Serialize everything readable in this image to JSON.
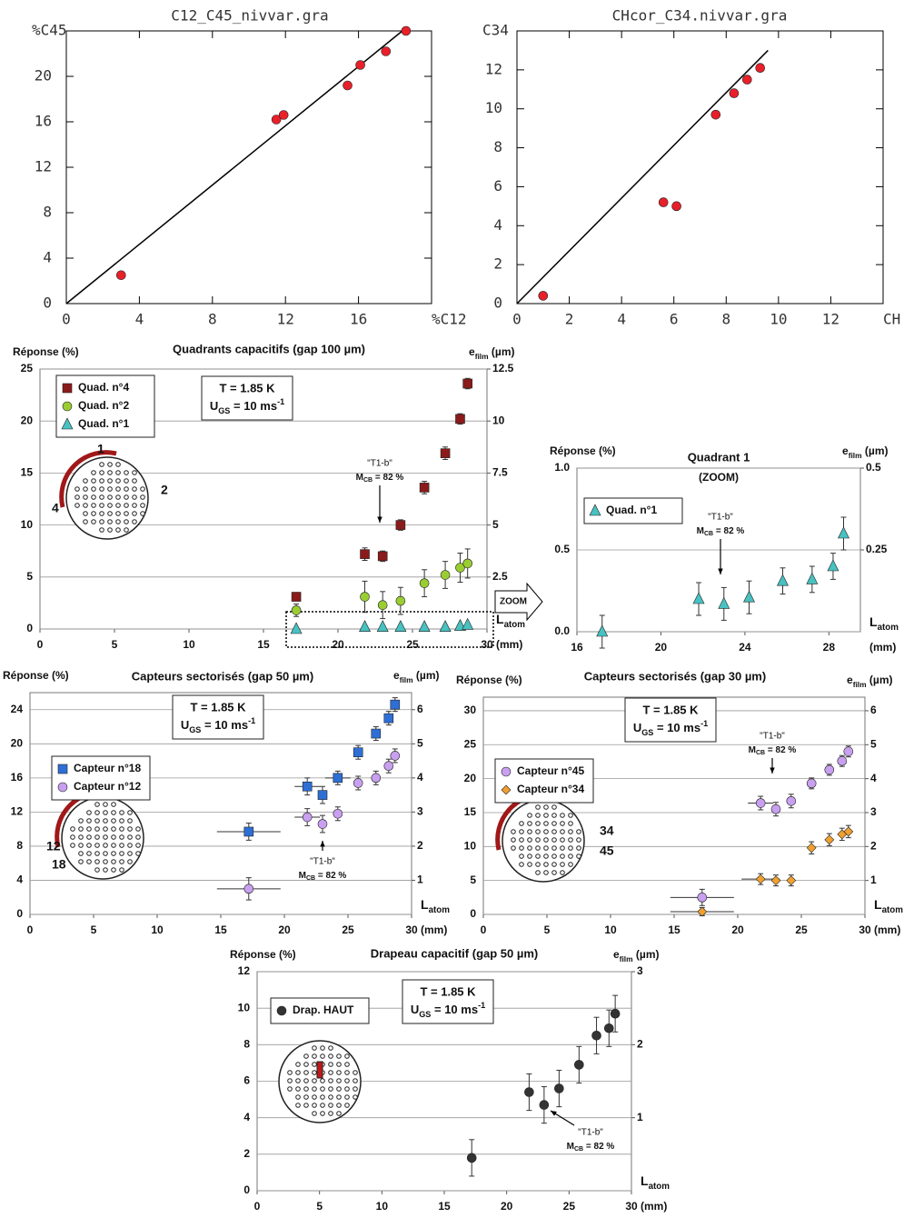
{
  "chart_data": [
    {
      "type": "scatter",
      "title": "C12_C45_nivvar.gra",
      "x_label": "%C12",
      "y_label": "%C45",
      "xlim": [
        0,
        20
      ],
      "ylim": [
        0,
        24
      ],
      "xticks": [
        0,
        4,
        8,
        12,
        16
      ],
      "yticks": [
        0,
        4,
        8,
        12,
        16,
        20
      ],
      "grid": false,
      "fit": {
        "x": [
          0,
          18.4
        ],
        "y": [
          0,
          24
        ]
      },
      "series": [
        {
          "color": "#e8202a",
          "marker": "circle",
          "x": [
            3,
            11.5,
            11.9,
            15.4,
            16.1,
            17.5,
            18.6
          ],
          "values": [
            2.5,
            16.2,
            16.6,
            19.2,
            21,
            22.2,
            24
          ]
        }
      ]
    },
    {
      "type": "scatter",
      "title": "CHcor_C34.nivvar.gra",
      "x_label": "CH",
      "y_label": "C34",
      "xlim": [
        0,
        14
      ],
      "ylim": [
        0,
        14
      ],
      "xticks": [
        0,
        2,
        4,
        6,
        8,
        10,
        12
      ],
      "yticks": [
        0,
        2,
        4,
        6,
        8,
        10,
        12
      ],
      "grid": false,
      "fit": {
        "x": [
          0,
          9.6
        ],
        "y": [
          0,
          13
        ]
      },
      "series": [
        {
          "color": "#e8202a",
          "marker": "circle",
          "x": [
            1,
            5.6,
            6.1,
            7.6,
            8.3,
            8.8,
            9.3
          ],
          "values": [
            0.4,
            5.2,
            5,
            9.7,
            10.8,
            11.5,
            12.1
          ]
        }
      ]
    },
    {
      "type": "scatter",
      "title": "Quadrants capacitifs (gap 100 µm)",
      "y_label": "Réponse (%)",
      "y2_label": "e",
      "y2_label_sub": "film",
      "y2_label_unit": " (µm)",
      "x_label": "L",
      "x_label_sub": "atom",
      "x_unit": "(mm)",
      "xlim": [
        0,
        30
      ],
      "ylim": [
        0,
        25
      ],
      "y2lim": [
        0,
        12.5
      ],
      "xticks": [
        0,
        5,
        10,
        15,
        20,
        25,
        30
      ],
      "yticks": [
        0,
        5,
        10,
        15,
        20,
        25
      ],
      "y2ticks": [
        2.5,
        5,
        7.5,
        10,
        12.5
      ],
      "grid": true,
      "conditions": [
        "T = 1.85 K",
        "U",
        "GS",
        " = 10 ms",
        "-1"
      ],
      "note": [
        "\"T1-b\"",
        "M",
        "CB",
        " = 82 %"
      ],
      "diagram_labels": [
        "1",
        "2",
        "4"
      ],
      "zoom_label": "ZOOM",
      "series": [
        {
          "name": "Quad. n°4",
          "color": "#8b1a1a",
          "marker": "square",
          "x": [
            17.2,
            21.8,
            23,
            24.2,
            25.8,
            27.2,
            28.2,
            28.7
          ],
          "values": [
            3.1,
            7.2,
            7,
            10,
            13.6,
            16.9,
            20.2,
            23.6
          ],
          "errors": [
            0.4,
            0.6,
            0.5,
            0.5,
            0.6,
            0.6,
            0.5,
            0.5
          ]
        },
        {
          "name": "Quad. n°2",
          "color": "#9acd32",
          "marker": "circle",
          "x": [
            17.2,
            21.8,
            23,
            24.2,
            25.8,
            27.2,
            28.2,
            28.7
          ],
          "values": [
            1.8,
            3.1,
            2.3,
            2.7,
            4.4,
            5.2,
            5.9,
            6.3
          ],
          "errors": [
            0.6,
            1.5,
            1.3,
            1.3,
            1.3,
            1.3,
            1.4,
            1.4
          ]
        },
        {
          "name": "Quad. n°1",
          "color": "#48c1c1",
          "marker": "triangle",
          "x": [
            17.2,
            21.8,
            23,
            24.2,
            25.8,
            27.2,
            28.2,
            28.7
          ],
          "values": [
            0,
            0.2,
            0.2,
            0.2,
            0.2,
            0.2,
            0.3,
            0.4
          ]
        }
      ]
    },
    {
      "type": "scatter",
      "title": "Quadrant 1",
      "subtitle": "(ZOOM)",
      "y_label": "Réponse (%)",
      "y2_label": "e",
      "y2_label_sub": "film",
      "y2_label_unit": " (µm)",
      "x_label": "L",
      "x_label_sub": "atom",
      "x_unit": "(mm)",
      "xlim": [
        16,
        29.5
      ],
      "ylim": [
        0,
        1
      ],
      "y2lim": [
        0,
        0.5
      ],
      "xticks": [
        16,
        20,
        24,
        28
      ],
      "yticks": [
        {
          "value": 0,
          "label": "0.0"
        },
        0.5,
        {
          "value": 1,
          "label": "1.0"
        }
      ],
      "y2ticks": [
        0.25,
        0.5
      ],
      "grid": true,
      "note": [
        "\"T1-b\"",
        "M",
        "CB",
        " = 82 %"
      ],
      "series": [
        {
          "name": "Quad. n°1",
          "color": "#48c1c1",
          "marker": "triangle",
          "x": [
            17.2,
            21.8,
            23,
            24.2,
            25.8,
            27.2,
            28.2,
            28.7
          ],
          "values": [
            0,
            0.2,
            0.17,
            0.21,
            0.31,
            0.32,
            0.4,
            0.6
          ],
          "errors": [
            0.1,
            0.1,
            0.1,
            0.1,
            0.08,
            0.08,
            0.08,
            0.1
          ]
        }
      ]
    },
    {
      "type": "scatter",
      "title": "Capteurs sectorisés (gap 50 µm)",
      "y_label": "Réponse (%)",
      "y2_label": "e",
      "y2_label_sub": "film",
      "y2_label_unit": " (µm)",
      "x_label": "L",
      "x_label_sub": "atom",
      "x_unit": "(mm)",
      "xlim": [
        0,
        30
      ],
      "ylim": [
        0,
        26
      ],
      "y2lim": [
        0,
        6.5
      ],
      "xticks": [
        0,
        5,
        10,
        15,
        20,
        25,
        30
      ],
      "yticks": [
        0,
        4,
        8,
        12,
        16,
        20,
        24
      ],
      "y2ticks": [
        1,
        2,
        3,
        4,
        5,
        6
      ],
      "grid": true,
      "conditions": [
        "T = 1.85 K",
        "U",
        "GS",
        " = 10 ms",
        "-1"
      ],
      "note": [
        "\"T1-b\"",
        "M",
        "CB",
        " = 82 %"
      ],
      "diagram_labels": [
        "12",
        "18"
      ],
      "series": [
        {
          "name": "Capteur n°18",
          "color": "#2e6fd6",
          "marker": "square",
          "x": [
            17.2,
            21.8,
            23,
            24.2,
            25.8,
            27.2,
            28.2,
            28.7
          ],
          "values": [
            9.7,
            15,
            14,
            16,
            19,
            21.2,
            23,
            24.6
          ],
          "errors": [
            1,
            1,
            1,
            0.8,
            0.8,
            0.8,
            0.8,
            0.8
          ],
          "x_errors": [
            2.5,
            1,
            null,
            1,
            null,
            null,
            null,
            null
          ]
        },
        {
          "name": "Capteur n°12",
          "color": "#c9a0f0",
          "marker": "circle",
          "x": [
            17.2,
            21.8,
            23,
            24.2,
            25.8,
            27.2,
            28.2,
            28.7
          ],
          "values": [
            3,
            11.4,
            10.6,
            11.8,
            15.4,
            16,
            17.4,
            18.6
          ],
          "errors": [
            1.3,
            1,
            1,
            0.8,
            0.8,
            0.8,
            0.8,
            0.8
          ],
          "x_errors": [
            2.5,
            1,
            null,
            null,
            null,
            null,
            null,
            null
          ]
        }
      ]
    },
    {
      "type": "scatter",
      "title": "Capteurs sectorisés (gap 30 µm)",
      "y_label": "Réponse (%)",
      "y2_label": "e",
      "y2_label_sub": "film",
      "y2_label_unit": " (µm)",
      "x_label": "L",
      "x_label_sub": "atom",
      "x_unit": "(mm)",
      "xlim": [
        0,
        30
      ],
      "ylim": [
        0,
        32
      ],
      "y2lim": [
        0,
        6.4
      ],
      "xticks": [
        0,
        5,
        10,
        15,
        20,
        25,
        30
      ],
      "yticks": [
        0,
        5,
        10,
        15,
        20,
        25,
        30
      ],
      "y2ticks": [
        1,
        2,
        3,
        4,
        5,
        6
      ],
      "grid": true,
      "conditions": [
        "T = 1.85 K",
        "U",
        "GS",
        " = 10 ms",
        "-1"
      ],
      "note": [
        "\"T1-b\"",
        "M",
        "CB",
        " = 82 %"
      ],
      "diagram_labels": [
        "34",
        "45"
      ],
      "series": [
        {
          "name": "Capteur n°45",
          "color": "#c9a0f0",
          "marker": "circle",
          "x": [
            17.2,
            21.8,
            23,
            24.2,
            25.8,
            27.2,
            28.2,
            28.7
          ],
          "values": [
            2.5,
            16.4,
            15.5,
            16.7,
            19.3,
            21.3,
            22.6,
            24
          ],
          "errors": [
            1.2,
            1,
            1,
            1,
            0.8,
            0.8,
            0.8,
            0.8
          ],
          "x_errors": [
            2.5,
            1,
            null,
            null,
            null,
            null,
            null,
            null
          ]
        },
        {
          "name": "Capteur n°34",
          "color": "#f0a030",
          "marker": "diamond",
          "x": [
            17.2,
            21.8,
            23,
            24.2,
            25.8,
            27.2,
            28.2,
            28.7
          ],
          "values": [
            0.4,
            5.2,
            5,
            5,
            9.8,
            11,
            11.8,
            12.2
          ],
          "errors": [
            0.6,
            0.8,
            0.8,
            0.8,
            0.9,
            0.9,
            0.9,
            0.9
          ],
          "x_errors": [
            2.5,
            1.5,
            null,
            null,
            null,
            null,
            null,
            null
          ]
        }
      ]
    },
    {
      "type": "scatter",
      "title": "Drapeau capacitif (gap 50 µm)",
      "y_label": "Réponse (%)",
      "y2_label": "e",
      "y2_label_sub": "film",
      "y2_label_unit": " (µm)",
      "x_label": "L",
      "x_label_sub": "atom",
      "x_unit": "(mm)",
      "xlim": [
        0,
        30
      ],
      "ylim": [
        0,
        12
      ],
      "y2lim": [
        0,
        3
      ],
      "xticks": [
        0,
        5,
        10,
        15,
        20,
        25,
        30
      ],
      "yticks": [
        0,
        2,
        4,
        6,
        8,
        10,
        12
      ],
      "y2ticks": [
        1,
        2,
        3
      ],
      "grid": true,
      "conditions": [
        "T = 1.85 K",
        "U",
        "GS",
        " = 10 ms",
        "-1"
      ],
      "note": [
        "\"T1-b\"",
        "M",
        "CB",
        " = 82 %"
      ],
      "series": [
        {
          "name": "Drap. HAUT",
          "color": "#333333",
          "marker": "circle",
          "x": [
            17.2,
            21.8,
            23,
            24.2,
            25.8,
            27.2,
            28.2,
            28.7
          ],
          "values": [
            1.8,
            5.4,
            4.7,
            5.6,
            6.9,
            8.5,
            8.9,
            9.7
          ],
          "errors": [
            1,
            1,
            1,
            1,
            1,
            1,
            1,
            1
          ]
        }
      ]
    }
  ]
}
